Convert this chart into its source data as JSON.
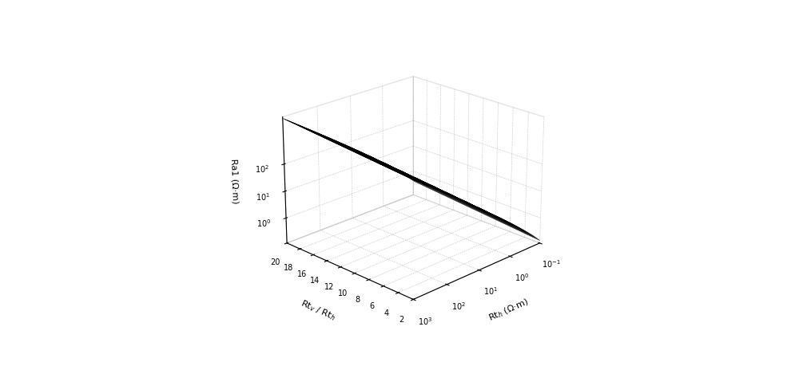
{
  "rth_log_min": -1,
  "rth_log_max": 3,
  "rth_n": 100,
  "ratio_min": 2,
  "ratio_max": 20,
  "ratio_n": 50,
  "background_color": "#ffffff",
  "elev": 22,
  "azim": 225,
  "figwidth": 10.0,
  "figheight": 4.59,
  "dpi": 100,
  "xlabel": "Rt$_h$ (Ω·m)",
  "ylabel": "Rt$_v$ / Rt$_h$",
  "zlabel": "Ra1 (Ω·m)",
  "xticks_log": [
    -1,
    0,
    1,
    2,
    3
  ],
  "xtick_labels": [
    "10$^{-1}$",
    "10$^{0}$",
    "10$^{1}$",
    "10$^{2}$",
    "10$^{3}$"
  ],
  "yticks": [
    2,
    4,
    6,
    8,
    10,
    12,
    14,
    16,
    18,
    20
  ],
  "ytick_labels": [
    "2",
    "4",
    "6",
    "8",
    "10",
    "12",
    "14",
    "16",
    "18",
    "20"
  ],
  "zticks_log": [
    0,
    1,
    2
  ],
  "ztick_labels": [
    "10$^{0}$",
    "10$^{1}$",
    "10$^{2}$"
  ]
}
